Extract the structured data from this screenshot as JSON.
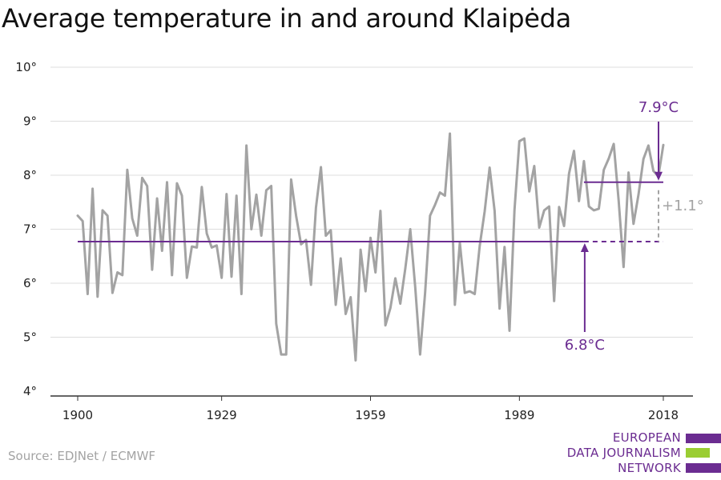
{
  "chart_data": {
    "type": "line",
    "title": "Average temperature in and around Klaipėda",
    "x_ticks": [
      "1900",
      "1929",
      "1959",
      "1989",
      "2018"
    ],
    "y_ticks": [
      "4°",
      "5°",
      "6°",
      "7°",
      "8°",
      "9°",
      "10°"
    ],
    "xlim": [
      1900,
      2018
    ],
    "ylim": [
      4,
      10
    ],
    "grid": true,
    "series": [
      {
        "color": "#a3a3a3",
        "x": [
          1900,
          1901,
          1902,
          1903,
          1904,
          1905,
          1906,
          1907,
          1908,
          1909,
          1910,
          1911,
          1912,
          1913,
          1914,
          1915,
          1916,
          1917,
          1918,
          1919,
          1920,
          1921,
          1922,
          1923,
          1924,
          1925,
          1926,
          1927,
          1928,
          1929,
          1930,
          1931,
          1932,
          1933,
          1934,
          1935,
          1936,
          1937,
          1938,
          1939,
          1940,
          1941,
          1942,
          1943,
          1944,
          1945,
          1946,
          1947,
          1948,
          1949,
          1950,
          1951,
          1952,
          1953,
          1954,
          1955,
          1956,
          1957,
          1958,
          1959,
          1960,
          1961,
          1962,
          1963,
          1964,
          1965,
          1966,
          1967,
          1968,
          1969,
          1970,
          1971,
          1972,
          1973,
          1974,
          1975,
          1976,
          1977,
          1978,
          1979,
          1980,
          1981,
          1982,
          1983,
          1984,
          1985,
          1986,
          1987,
          1988,
          1989,
          1990,
          1991,
          1992,
          1993,
          1994,
          1995,
          1996,
          1997,
          1998,
          1999,
          2000,
          2001,
          2002,
          2003,
          2004,
          2005,
          2006,
          2007,
          2008,
          2009,
          2010,
          2011,
          2012,
          2013,
          2014,
          2015,
          2016,
          2017,
          2018
        ],
        "values": [
          7.25,
          7.15,
          5.8,
          7.75,
          5.75,
          7.35,
          7.25,
          5.82,
          6.2,
          6.15,
          8.1,
          7.2,
          6.88,
          7.95,
          7.8,
          6.25,
          7.57,
          6.6,
          7.87,
          6.15,
          7.85,
          7.62,
          6.1,
          6.68,
          6.66,
          7.78,
          6.92,
          6.66,
          6.7,
          6.1,
          7.65,
          6.12,
          7.62,
          5.8,
          8.55,
          7.0,
          7.64,
          6.88,
          7.72,
          7.8,
          5.25,
          4.68,
          4.68,
          7.92,
          7.25,
          6.72,
          6.8,
          5.97,
          7.4,
          8.15,
          6.88,
          6.98,
          5.6,
          6.46,
          5.43,
          5.74,
          4.57,
          6.62,
          5.85,
          6.84,
          6.2,
          7.34,
          5.22,
          5.54,
          6.09,
          5.62,
          6.27,
          7.0,
          5.93,
          4.68,
          5.81,
          7.25,
          7.45,
          7.68,
          7.62,
          8.77,
          5.6,
          6.75,
          5.82,
          5.85,
          5.8,
          6.69,
          7.33,
          8.14,
          7.34,
          5.53,
          6.67,
          5.12,
          7.35,
          8.63,
          8.68,
          7.7,
          8.17,
          7.03,
          7.35,
          7.42,
          5.67,
          7.41,
          7.06,
          8.03,
          8.45,
          7.52,
          8.26,
          7.42,
          7.35,
          7.38,
          8.1,
          8.31,
          8.58,
          7.54,
          6.3,
          8.05,
          7.1,
          7.64,
          8.3,
          8.55,
          8.08,
          7.98,
          8.56
        ]
      }
    ],
    "reference_lines": [
      {
        "label": "6.8°C",
        "y": 6.77,
        "x_from": 1900,
        "x_to": 2018,
        "solid_to": 2002,
        "color": "#6b2c91"
      },
      {
        "label": "7.9°C",
        "y": 7.87,
        "x_from": 2002,
        "x_to": 2018,
        "color": "#6b2c91"
      }
    ],
    "difference_label": "+1.1°"
  },
  "source": "Source: EDJNet / ECMWF",
  "logo": {
    "lines": [
      "EUROPEAN",
      "DATA JOURNALISM",
      "NETWORK"
    ]
  },
  "colors": {
    "accent": "#6b2c91",
    "series": "#a3a3a3",
    "grid": "#dddddd",
    "axis": "#333333",
    "bar": "#9acd32"
  }
}
